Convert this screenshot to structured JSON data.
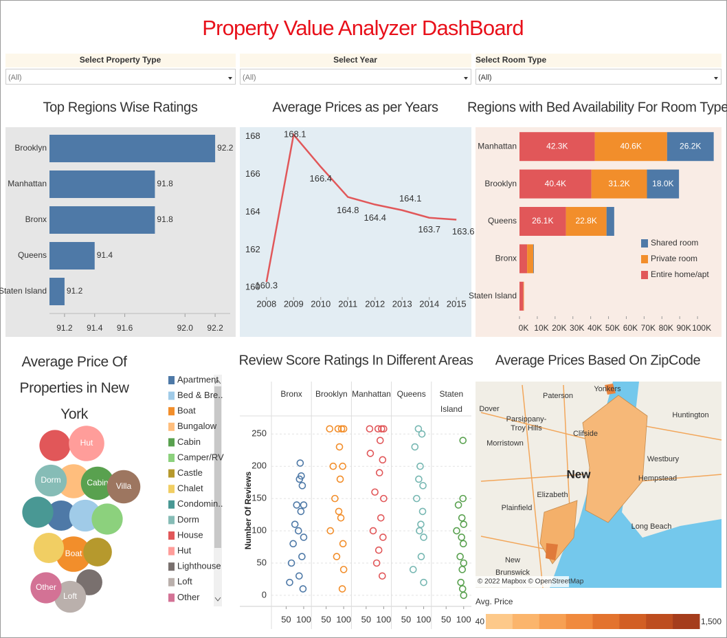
{
  "title": "Property Value Analyzer DashBoard",
  "filters": [
    {
      "label": "Select Property Type",
      "value": "(All)"
    },
    {
      "label": "Select Year",
      "value": "(All)"
    },
    {
      "label": "Select Room Type",
      "value": "(All)"
    }
  ],
  "chart_data": [
    {
      "type": "hbar",
      "title": "Top Regions Wise Ratings",
      "categories": [
        "Brooklyn",
        "Manhattan",
        "Bronx",
        "Queens",
        "Staten Island"
      ],
      "values": [
        92.2,
        91.8,
        91.8,
        91.4,
        91.2
      ],
      "color": "#4e79a7",
      "xlim": [
        91.1,
        92.3
      ],
      "xticks": [
        91.2,
        91.4,
        91.6,
        {
          "value": 92,
          "label": "92.0"
        },
        92.2
      ]
    },
    {
      "type": "line",
      "title": "Average Prices as per Years",
      "x": [
        2008,
        2009,
        2010,
        2011,
        2012,
        2013,
        2014,
        2015
      ],
      "values": [
        160.3,
        168.1,
        166.4,
        164.8,
        164.4,
        164.1,
        163.7,
        163.6
      ],
      "color": "#e15759",
      "xlim": [
        2007.6,
        2015.4
      ],
      "xticks": [
        2008,
        2009,
        2010,
        2011,
        2012,
        2013,
        2014,
        2015
      ],
      "ylim": [
        159.5,
        168.5
      ],
      "yticks": [
        160,
        162,
        164,
        166,
        168
      ]
    },
    {
      "type": "stacked-hbar",
      "title": "Regions with Bed Availability For Room Type",
      "categories": [
        "Manhattan",
        "Brooklyn",
        "Queens",
        "Bronx",
        "Staten Island"
      ],
      "series": [
        {
          "name": "Entire home/apt",
          "color": "#e15759",
          "values": [
            42300,
            40400,
            26100,
            4300,
            2200
          ],
          "value_labels": [
            "42.3K",
            "40.4K",
            "26.1K",
            null,
            null
          ]
        },
        {
          "name": "Private room",
          "color": "#f28e2b",
          "values": [
            40600,
            31200,
            22800,
            3500,
            300
          ],
          "value_labels": [
            "40.6K",
            "31.2K",
            "22.8K",
            null,
            null
          ]
        },
        {
          "name": "Shared room",
          "color": "#4e79a7",
          "values": [
            26200,
            18000,
            4300,
            300,
            0
          ],
          "value_labels": [
            "26.2K",
            "18.0K",
            null,
            null,
            null
          ]
        }
      ],
      "xlim": [
        0,
        110000
      ],
      "xticks": [
        {
          "value": 0,
          "label": "0K"
        },
        {
          "value": 10000,
          "label": "10K"
        },
        {
          "value": 20000,
          "label": "20K"
        },
        {
          "value": 30000,
          "label": "30K"
        },
        {
          "value": 40000,
          "label": "40K"
        },
        {
          "value": 50000,
          "label": "50K"
        },
        {
          "value": 60000,
          "label": "60K"
        },
        {
          "value": 70000,
          "label": "70K"
        },
        {
          "value": 80000,
          "label": "80K"
        },
        {
          "value": 90000,
          "label": "90K"
        },
        {
          "value": 100000,
          "label": "100K"
        }
      ],
      "legend": "lower-right"
    },
    {
      "type": "bubble",
      "title": "Average Price Of Properties in New York",
      "categories": [
        "Apartment",
        "Bed & Bre..",
        "Boat",
        "Bungalow",
        "Cabin",
        "Camper/RV",
        "Castle",
        "Chalet",
        "Condomin..",
        "Dorm",
        "House",
        "Hut",
        "Lighthouse",
        "Loft",
        "Other",
        "Villa"
      ],
      "colors": [
        "#4e79a7",
        "#a0cbe8",
        "#f28e2b",
        "#ffbe7d",
        "#59a14f",
        "#8cd17d",
        "#b6992d",
        "#f1ce63",
        "#499894",
        "#86bcb6",
        "#e15759",
        "#ff9d9a",
        "#79706e",
        "#bab0ac",
        "#d37295",
        "#9d7660"
      ],
      "values": [
        190,
        210,
        260,
        240,
        230,
        200,
        170,
        190,
        200,
        210,
        200,
        260,
        140,
        210,
        200,
        230
      ]
    },
    {
      "type": "scatter",
      "title": "Review Score Ratings In Different Areas",
      "y_label": "Number Of Reviews",
      "series": [
        {
          "name": "Bronx",
          "color": "#4e79a7",
          "x": [
            60,
            65,
            70,
            75,
            80,
            85,
            88,
            90,
            92,
            95,
            96,
            98,
            100,
            100,
            93,
            87
          ],
          "y": [
            20,
            50,
            80,
            110,
            140,
            100,
            180,
            205,
            130,
            60,
            170,
            10,
            90,
            140,
            185,
            30
          ]
        },
        {
          "name": "Brooklyn",
          "color": "#f28e2b",
          "x": [
            60,
            62,
            70,
            75,
            80,
            84,
            88,
            90,
            92,
            94,
            96,
            97,
            98,
            100,
            100,
            86
          ],
          "y": [
            258,
            100,
            200,
            150,
            60,
            258,
            230,
            180,
            120,
            258,
            10,
            200,
            80,
            258,
            40,
            130
          ]
        },
        {
          "name": "Manhattan",
          "color": "#e15759",
          "x": [
            60,
            62,
            70,
            75,
            80,
            84,
            88,
            90,
            92,
            94,
            96,
            97,
            98,
            100,
            100,
            86
          ],
          "y": [
            258,
            220,
            100,
            160,
            50,
            258,
            190,
            240,
            120,
            258,
            30,
            210,
            90,
            258,
            150,
            70
          ]
        },
        {
          "name": "Queens",
          "color": "#76b7b2",
          "x": [
            70,
            75,
            80,
            85,
            88,
            90,
            93,
            95,
            97,
            98,
            100,
            100,
            92,
            86
          ],
          "y": [
            40,
            230,
            150,
            258,
            100,
            200,
            60,
            250,
            130,
            170,
            20,
            90,
            110,
            180
          ]
        },
        {
          "name": "Staten Island",
          "color": "#59a14f",
          "x": [
            80,
            85,
            90,
            92,
            94,
            95,
            96,
            97,
            98,
            99,
            100,
            100,
            100,
            98
          ],
          "y": [
            100,
            140,
            60,
            20,
            90,
            120,
            40,
            10,
            150,
            80,
            50,
            110,
            0,
            240
          ]
        }
      ],
      "xlim": [
        8,
        122
      ],
      "xticks": [
        50,
        100
      ],
      "ylim": [
        -15,
        278
      ],
      "yticks": [
        0,
        50,
        100,
        150,
        200,
        250
      ]
    },
    {
      "type": "map",
      "title": "Average Prices Based On ZipCode",
      "places": [
        "Paterson",
        "Yonkers",
        "Dover",
        "Parsippany-Troy Hills",
        "Morristown",
        "Clifside",
        "Huntington",
        "Westbury",
        "Hempstead",
        "New",
        "Elizabeth",
        "Plainfield",
        "Long Beach",
        "New Brunswick"
      ],
      "attribution": "© 2022 Mapbox © OpenStreetMap",
      "colorbar": {
        "title": "Avg. Price",
        "ticks": [
          40,
          {
            "value": 1500,
            "label": "1,500"
          }
        ],
        "colors": [
          "#fdc98a",
          "#fbb56c",
          "#f7a053",
          "#f08a3e",
          "#e3732e",
          "#d25f24",
          "#bd4d1f",
          "#a53d1c"
        ]
      }
    }
  ]
}
